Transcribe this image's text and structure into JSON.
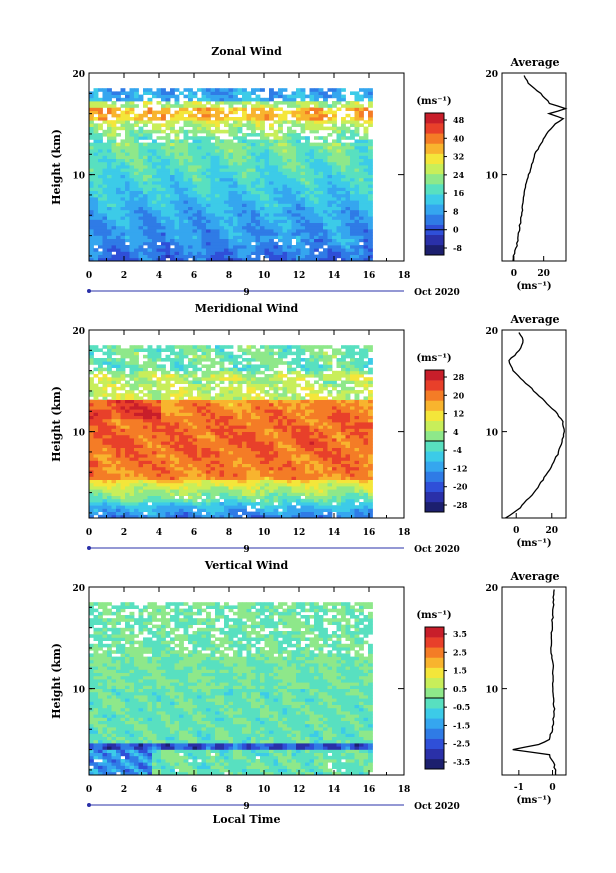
{
  "panels": [
    {
      "title": "Zonal Wind",
      "ylabel": "Height (km)",
      "y_ticks": [
        "10",
        "20"
      ],
      "x_ticks": [
        "0",
        "2",
        "4",
        "6",
        "8",
        "10",
        "12",
        "14",
        "16",
        "18"
      ],
      "date_marker": "9",
      "date_label": "Oct 2020",
      "colorbar_unit": "(ms⁻¹)",
      "colorbar_ticks": [
        "48",
        "40",
        "32",
        "24",
        "16",
        "8",
        "0",
        "-8"
      ],
      "avg_title": "Average",
      "avg_x_ticks": [
        "0",
        "20"
      ],
      "avg_unit": "(ms⁻¹)"
    },
    {
      "title": "Meridional Wind",
      "ylabel": "Height (km)",
      "y_ticks": [
        "10",
        "20"
      ],
      "x_ticks": [
        "0",
        "2",
        "4",
        "6",
        "8",
        "10",
        "12",
        "14",
        "16",
        "18"
      ],
      "date_marker": "9",
      "date_label": "Oct 2020",
      "colorbar_unit": "(ms⁻¹)",
      "colorbar_ticks": [
        "28",
        "20",
        "12",
        "4",
        "-4",
        "-12",
        "-20",
        "-28"
      ],
      "avg_title": "Average",
      "avg_x_ticks": [
        "0",
        "20"
      ],
      "avg_unit": "(ms⁻¹)"
    },
    {
      "title": "Vertical Wind",
      "ylabel": "Height (km)",
      "y_ticks": [
        "10",
        "20"
      ],
      "x_ticks": [
        "0",
        "2",
        "4",
        "6",
        "8",
        "10",
        "12",
        "14",
        "16",
        "18"
      ],
      "date_marker": "9",
      "date_label": "Oct 2020",
      "colorbar_unit": "(ms⁻¹)",
      "colorbar_ticks": [
        "3.5",
        "2.5",
        "1.5",
        "0.5",
        "-0.5",
        "-1.5",
        "-2.5",
        "-3.5"
      ],
      "avg_title": "Average",
      "avg_x_ticks": [
        "-1",
        "0"
      ],
      "avg_unit": "(ms⁻¹)"
    }
  ],
  "xlabel": "Local Time",
  "colors": {
    "palette": [
      "#1c1f6e",
      "#2a30a8",
      "#2f4fd8",
      "#2f7be6",
      "#35a6ef",
      "#3ccbe8",
      "#58e0c0",
      "#8ee88a",
      "#c8ee5a",
      "#f4e63a",
      "#f8b42e",
      "#f47c26",
      "#e8402a",
      "#c81e2a"
    ]
  },
  "chart_data": [
    {
      "type": "heatmap",
      "title": "Zonal Wind",
      "ylabel": "Height (km)",
      "xlabel": "Local Time",
      "x_range_hours": [
        0,
        18
      ],
      "data_extent_hours": [
        0,
        16
      ],
      "y_range_km": [
        1.5,
        20
      ],
      "colorbar_range": [
        -8,
        48
      ],
      "profile_average": {
        "x_range": [
          -8,
          35
        ],
        "height_km": [
          1.5,
          3,
          5,
          7,
          9,
          11,
          12,
          13,
          14,
          15,
          15.5,
          16,
          16.5,
          17,
          18,
          19,
          20
        ],
        "value": [
          -1,
          2,
          4,
          6,
          8,
          12,
          14,
          18,
          22,
          28,
          33,
          24,
          35,
          24,
          18,
          10,
          6
        ]
      }
    },
    {
      "type": "heatmap",
      "title": "Meridional Wind",
      "ylabel": "Height (km)",
      "xlabel": "Local Time",
      "x_range_hours": [
        0,
        18
      ],
      "data_extent_hours": [
        0,
        16
      ],
      "y_range_km": [
        1.5,
        20
      ],
      "colorbar_range": [
        -28,
        28
      ],
      "profile_average": {
        "x_range": [
          -8,
          28
        ],
        "height_km": [
          1.5,
          2.5,
          4,
          6,
          8,
          10,
          11,
          12,
          13,
          14,
          15,
          16,
          17,
          18,
          19,
          20
        ],
        "value": [
          -6,
          2,
          10,
          18,
          24,
          27,
          26,
          22,
          16,
          10,
          4,
          -2,
          -4,
          2,
          4,
          1
        ]
      }
    },
    {
      "type": "heatmap",
      "title": "Vertical Wind",
      "ylabel": "Height (km)",
      "xlabel": "Local Time",
      "x_range_hours": [
        0,
        18
      ],
      "data_extent_hours": [
        0,
        16
      ],
      "y_range_km": [
        1.5,
        20
      ],
      "colorbar_range": [
        -3.5,
        3.5
      ],
      "profile_average": {
        "x_range": [
          -1.5,
          0.4
        ],
        "height_km": [
          1.5,
          2.5,
          3.5,
          4,
          4.5,
          5,
          6,
          8,
          10,
          12,
          14,
          16,
          18,
          20
        ],
        "value": [
          0.1,
          0.05,
          -0.1,
          -1.2,
          -0.4,
          -0.1,
          0,
          0.05,
          0,
          0.02,
          -0.05,
          -0.02,
          0.02,
          0.05
        ]
      }
    }
  ]
}
